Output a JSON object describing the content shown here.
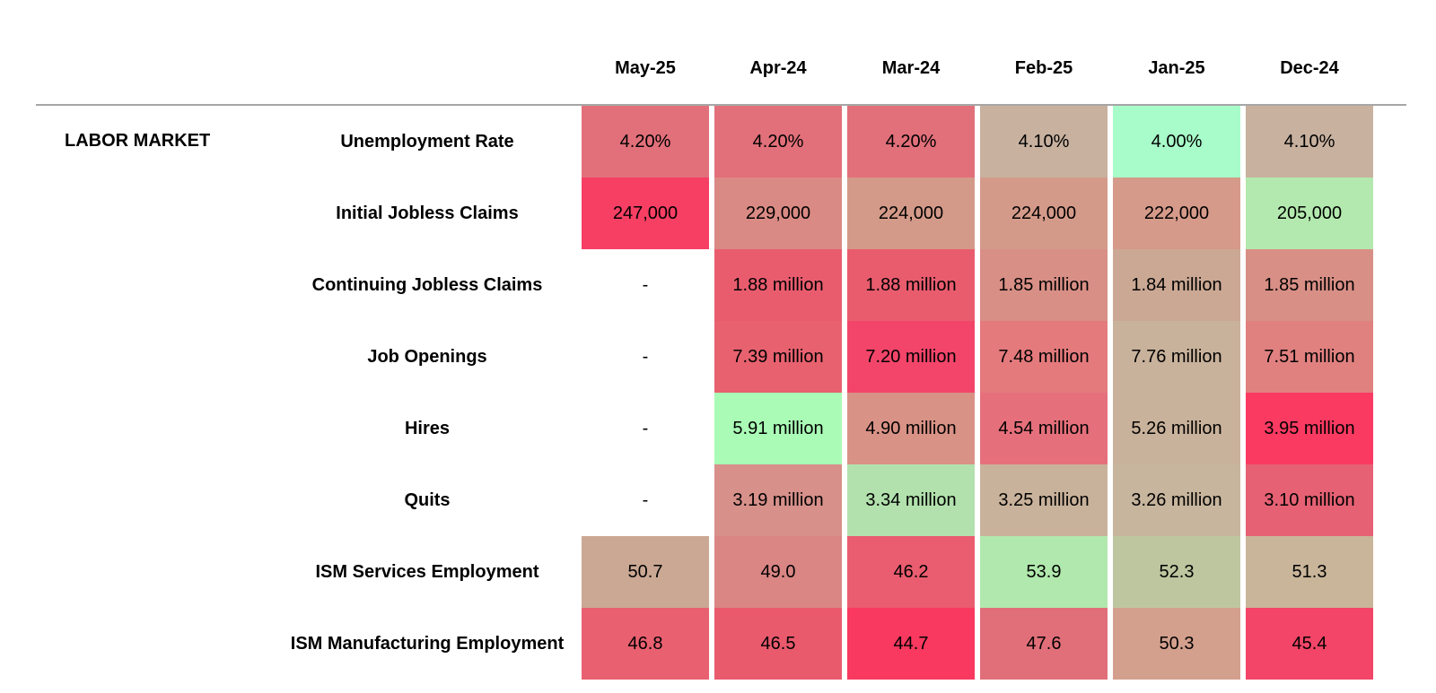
{
  "section_label": "LABOR MARKET",
  "columns": [
    "May-25",
    "Apr-24",
    "Mar-24",
    "Feb-25",
    "Jan-25",
    "Dec-24"
  ],
  "rows": [
    {
      "label": "Unemployment Rate",
      "values": [
        "4.20%",
        "4.20%",
        "4.20%",
        "4.10%",
        "4.00%",
        "4.10%"
      ],
      "colors": [
        "#e2707a",
        "#e2707a",
        "#e2707a",
        "#c8b19f",
        "#a8fcc9",
        "#c8b19f"
      ]
    },
    {
      "label": "Initial Jobless Claims",
      "values": [
        "247,000",
        "229,000",
        "224,000",
        "224,000",
        "222,000",
        "205,000"
      ],
      "colors": [
        "#f73f64",
        "#da8a84",
        "#d49a89",
        "#d49a89",
        "#d59a89",
        "#b3e9ae"
      ]
    },
    {
      "label": "Continuing Jobless Claims",
      "values": [
        "-",
        "1.88 million",
        "1.88 million",
        "1.85 million",
        "1.84 million",
        "1.85 million"
      ],
      "colors": [
        null,
        "#e95c6e",
        "#e95c6e",
        "#d88f85",
        "#cba894",
        "#d88f85"
      ]
    },
    {
      "label": "Job Openings",
      "values": [
        "-",
        "7.39 million",
        "7.20 million",
        "7.48 million",
        "7.76 million",
        "7.51 million"
      ],
      "colors": [
        null,
        "#e8616f",
        "#f3456a",
        "#e47a7c",
        "#c9b29b",
        "#e08180"
      ]
    },
    {
      "label": "Hires",
      "values": [
        "-",
        "5.91 million",
        "4.90 million",
        "4.54 million",
        "5.26 million",
        "3.95 million"
      ],
      "colors": [
        null,
        "#a9fbb5",
        "#d99286",
        "#e5707b",
        "#c9b29b",
        "#fb3a62"
      ]
    },
    {
      "label": "Quits",
      "values": [
        "-",
        "3.19 million",
        "3.34 million",
        "3.25 million",
        "3.26 million",
        "3.10 million"
      ],
      "colors": [
        null,
        "#d7908a",
        "#b2e1ad",
        "#c9b29b",
        "#c7b59d",
        "#e56173"
      ]
    },
    {
      "label": "ISM Services Employment",
      "values": [
        "50.7",
        "49.0",
        "46.2",
        "53.9",
        "52.3",
        "51.3"
      ],
      "colors": [
        "#caa894",
        "#d98684",
        "#ea5c6f",
        "#b1e8ad",
        "#bec6a0",
        "#c9b59a"
      ]
    },
    {
      "label": "ISM Manufacturing Employment",
      "values": [
        "46.8",
        "46.5",
        "44.7",
        "47.6",
        "50.3",
        "45.4"
      ],
      "colors": [
        "#e96070",
        "#e95a6d",
        "#f9395f",
        "#e16f79",
        "#d4a08e",
        "#f34567"
      ]
    }
  ]
}
